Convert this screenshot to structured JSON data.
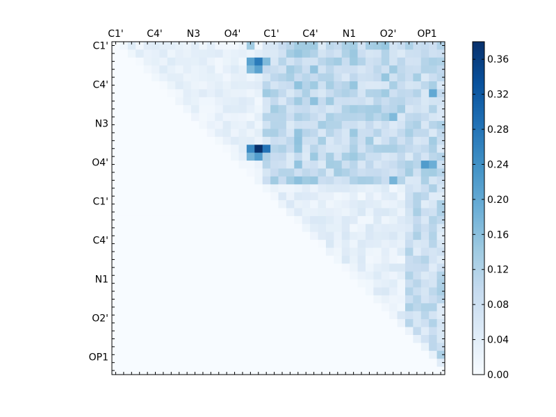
{
  "chart_data": {
    "type": "heatmap",
    "title": "",
    "xlabel": "",
    "ylabel": "",
    "x_tick_labels": [
      "C1'",
      "C4'",
      "N3",
      "O4'",
      "C1'",
      "C4'",
      "N1",
      "O2'",
      "OP1"
    ],
    "y_tick_labels": [
      "C1'",
      "C4'",
      "N3",
      "O4'",
      "C1'",
      "C4'",
      "N1",
      "O2'",
      "OP1"
    ],
    "matrix_size": 42,
    "mask": "upper-triangle",
    "colormap": "Blues",
    "colorbar": {
      "range": [
        0.0,
        0.38
      ],
      "tick_labels": [
        "0.00",
        "0.04",
        "0.08",
        "0.12",
        "0.16",
        "0.20",
        "0.24",
        "0.28",
        "0.32",
        "0.36"
      ],
      "tick_values": [
        0.0,
        0.04,
        0.08,
        0.12,
        0.16,
        0.2,
        0.24,
        0.28,
        0.32,
        0.36
      ]
    },
    "highlights": [
      {
        "row": 2,
        "col": 18,
        "value": 0.27
      },
      {
        "row": 2,
        "col": 17,
        "value": 0.21
      },
      {
        "row": 2,
        "col": 19,
        "value": 0.17
      },
      {
        "row": 3,
        "col": 17,
        "value": 0.17
      },
      {
        "row": 3,
        "col": 18,
        "value": 0.21
      },
      {
        "row": 13,
        "col": 18,
        "value": 0.38
      },
      {
        "row": 13,
        "col": 17,
        "value": 0.25
      },
      {
        "row": 13,
        "col": 19,
        "value": 0.28
      },
      {
        "row": 14,
        "col": 17,
        "value": 0.18
      },
      {
        "row": 14,
        "col": 18,
        "value": 0.22
      },
      {
        "row": 6,
        "col": 40,
        "value": 0.2
      },
      {
        "row": 15,
        "col": 39,
        "value": 0.22
      },
      {
        "row": 15,
        "col": 40,
        "value": 0.19
      },
      {
        "row": 0,
        "col": 17,
        "value": 0.14
      },
      {
        "row": 0,
        "col": 34,
        "value": 0.15
      },
      {
        "row": 4,
        "col": 34,
        "value": 0.15
      },
      {
        "row": 9,
        "col": 35,
        "value": 0.17
      },
      {
        "row": 17,
        "col": 35,
        "value": 0.18
      }
    ]
  }
}
